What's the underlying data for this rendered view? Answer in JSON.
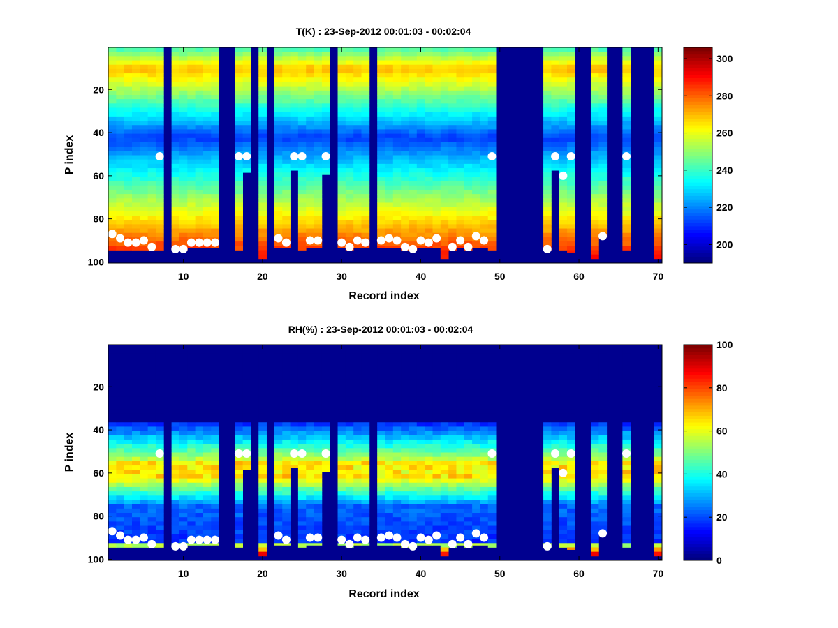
{
  "chart_data": [
    {
      "type": "heatmap",
      "title": "T(K) : 23-Sep-2012 00:01:03 - 00:02:04",
      "xlabel": "Record index",
      "ylabel": "P index",
      "xlim": [
        0.5,
        70.5
      ],
      "ylim": [
        0.5,
        100.5
      ],
      "y_reversed": true,
      "xticks": [
        10,
        20,
        30,
        40,
        50,
        60,
        70
      ],
      "yticks": [
        20,
        40,
        60,
        80,
        100
      ],
      "colormap": "jet",
      "clim": [
        190,
        306
      ],
      "colorbar": {
        "ticks": [
          200,
          220,
          240,
          260,
          280,
          300
        ],
        "placement": "right"
      },
      "fill_color_below_data": "#00008f",
      "profile_kind": "temperature",
      "records": [
        {
          "r": 1,
          "bottom": 94,
          "top": 1,
          "marker": 87
        },
        {
          "r": 2,
          "bottom": 94,
          "top": 1,
          "marker": 89
        },
        {
          "r": 3,
          "bottom": 94,
          "top": 1,
          "marker": 91
        },
        {
          "r": 4,
          "bottom": 94,
          "top": 1,
          "marker": 91
        },
        {
          "r": 5,
          "bottom": 94,
          "top": 1,
          "marker": 90
        },
        {
          "r": 6,
          "bottom": 94,
          "top": 1,
          "marker": 93
        },
        {
          "r": 7,
          "bottom": 94,
          "top": 1,
          "marker": 51
        },
        {
          "r": 8,
          "bottom": null
        },
        {
          "r": 9,
          "bottom": 94,
          "top": 1,
          "marker": 94
        },
        {
          "r": 10,
          "bottom": 94,
          "top": 1,
          "marker": 94
        },
        {
          "r": 11,
          "bottom": 93,
          "top": 1,
          "marker": 91
        },
        {
          "r": 12,
          "bottom": 93,
          "top": 1,
          "marker": 91
        },
        {
          "r": 13,
          "bottom": 93,
          "top": 1,
          "marker": 91
        },
        {
          "r": 14,
          "bottom": 93,
          "top": 1,
          "marker": 91
        },
        {
          "r": 15,
          "bottom": null
        },
        {
          "r": 16,
          "bottom": null
        },
        {
          "r": 17,
          "bottom": 94,
          "top": 1,
          "marker": 51
        },
        {
          "r": 18,
          "bottom": 58,
          "top": 1,
          "marker": 51
        },
        {
          "r": 19,
          "bottom": null
        },
        {
          "r": 20,
          "bottom": 98,
          "top": 1,
          "marker": null
        },
        {
          "r": 21,
          "bottom": null
        },
        {
          "r": 22,
          "bottom": 93,
          "top": 1,
          "marker": 89
        },
        {
          "r": 23,
          "bottom": 93,
          "top": 1,
          "marker": 91
        },
        {
          "r": 24,
          "bottom": 57,
          "top": 1,
          "marker": 51
        },
        {
          "r": 25,
          "bottom": 94,
          "top": 1,
          "marker": 51
        },
        {
          "r": 26,
          "bottom": 93,
          "top": 1,
          "marker": 90
        },
        {
          "r": 27,
          "bottom": 93,
          "top": 1,
          "marker": 90
        },
        {
          "r": 28,
          "bottom": 59,
          "top": 1,
          "marker": 51
        },
        {
          "r": 29,
          "bottom": null
        },
        {
          "r": 30,
          "bottom": 93,
          "top": 1,
          "marker": 91
        },
        {
          "r": 31,
          "bottom": 94,
          "top": 1,
          "marker": 93
        },
        {
          "r": 32,
          "bottom": 93,
          "top": 1,
          "marker": 90
        },
        {
          "r": 33,
          "bottom": 93,
          "top": 1,
          "marker": 91
        },
        {
          "r": 34,
          "bottom": null
        },
        {
          "r": 35,
          "bottom": 93,
          "top": 1,
          "marker": 90
        },
        {
          "r": 36,
          "bottom": 93,
          "top": 1,
          "marker": 89
        },
        {
          "r": 37,
          "bottom": 93,
          "top": 1,
          "marker": 90
        },
        {
          "r": 38,
          "bottom": 94,
          "top": 1,
          "marker": 93
        },
        {
          "r": 39,
          "bottom": 94,
          "top": 1,
          "marker": 94
        },
        {
          "r": 40,
          "bottom": 93,
          "top": 1,
          "marker": 90
        },
        {
          "r": 41,
          "bottom": 93,
          "top": 1,
          "marker": 91
        },
        {
          "r": 42,
          "bottom": 93,
          "top": 1,
          "marker": 89
        },
        {
          "r": 43,
          "bottom": 98,
          "top": 1,
          "marker": null
        },
        {
          "r": 44,
          "bottom": 94,
          "top": 1,
          "marker": 93
        },
        {
          "r": 45,
          "bottom": 93,
          "top": 1,
          "marker": 90
        },
        {
          "r": 46,
          "bottom": 94,
          "top": 1,
          "marker": 93
        },
        {
          "r": 47,
          "bottom": 93,
          "top": 1,
          "marker": 88
        },
        {
          "r": 48,
          "bottom": 93,
          "top": 1,
          "marker": 90
        },
        {
          "r": 49,
          "bottom": 94,
          "top": 1,
          "marker": 51
        },
        {
          "r": 50,
          "bottom": null
        },
        {
          "r": 51,
          "bottom": null
        },
        {
          "r": 52,
          "bottom": null
        },
        {
          "r": 53,
          "bottom": null
        },
        {
          "r": 54,
          "bottom": null
        },
        {
          "r": 55,
          "bottom": null
        },
        {
          "r": 56,
          "bottom": 94,
          "top": 1,
          "marker": 94
        },
        {
          "r": 57,
          "bottom": 57,
          "top": 1,
          "marker": 51
        },
        {
          "r": 58,
          "bottom": 94,
          "top": 1,
          "marker": 60
        },
        {
          "r": 59,
          "bottom": 95,
          "top": 1,
          "marker": 51
        },
        {
          "r": 60,
          "bottom": null
        },
        {
          "r": 61,
          "bottom": null
        },
        {
          "r": 62,
          "bottom": 98,
          "top": 1,
          "marker": null
        },
        {
          "r": 63,
          "bottom": 88,
          "top": 1,
          "marker": 88
        },
        {
          "r": 64,
          "bottom": null
        },
        {
          "r": 65,
          "bottom": null
        },
        {
          "r": 66,
          "bottom": 94,
          "top": 1,
          "marker": 51
        },
        {
          "r": 67,
          "bottom": null
        },
        {
          "r": 68,
          "bottom": null
        },
        {
          "r": 69,
          "bottom": null
        },
        {
          "r": 70,
          "bottom": 98,
          "top": 1,
          "marker": null
        }
      ]
    },
    {
      "type": "heatmap",
      "title": "RH(%) : 23-Sep-2012 00:01:03 - 00:02:04",
      "xlabel": "Record index",
      "ylabel": "P index",
      "xlim": [
        0.5,
        70.5
      ],
      "ylim": [
        0.5,
        100.5
      ],
      "y_reversed": true,
      "xticks": [
        10,
        20,
        30,
        40,
        50,
        60,
        70
      ],
      "yticks": [
        20,
        40,
        60,
        80,
        100
      ],
      "colormap": "jet",
      "clim": [
        0,
        100
      ],
      "colorbar": {
        "ticks": [
          0,
          20,
          40,
          60,
          80,
          100
        ],
        "placement": "right"
      },
      "fill_color_below_data": "#00008f",
      "profile_kind": "humidity",
      "records_same_as": 0
    }
  ]
}
